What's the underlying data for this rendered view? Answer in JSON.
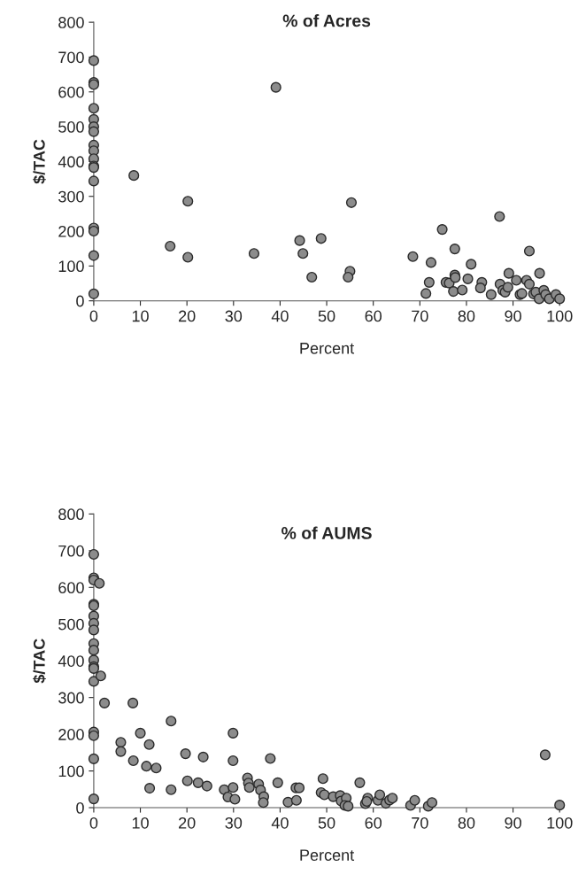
{
  "chart_data": [
    {
      "type": "scatter",
      "title": "% of Acres",
      "xlabel": "Percent",
      "ylabel": "$/TAC",
      "xlim": [
        0,
        100
      ],
      "ylim": [
        0,
        800
      ],
      "xticks": [
        0,
        10,
        20,
        30,
        40,
        50,
        60,
        70,
        80,
        90,
        100
      ],
      "yticks": [
        0,
        100,
        200,
        300,
        400,
        500,
        600,
        700,
        800
      ],
      "grid": false,
      "legend": false,
      "marker": "circle",
      "series": [
        {
          "color": "#8c8c8c",
          "x": [
            0,
            0,
            0,
            0,
            0,
            0,
            0,
            0,
            0,
            0,
            0,
            0,
            0,
            0,
            0,
            0,
            0,
            8.6,
            20.2,
            16.4,
            20.2,
            34.4,
            39.1,
            44.2,
            44.9,
            48.8,
            46.8,
            55.3,
            55.0,
            54.6,
            68.5,
            71.3,
            72.0,
            72.4,
            74.8,
            75.6,
            76.3,
            77.2,
            77.5,
            77.5,
            77.6,
            79.1,
            80.3,
            81.0,
            83.3,
            83.0,
            85.3,
            87.1,
            87.2,
            87.8,
            88.3,
            88.9,
            89.1,
            90.7,
            91.5,
            91.9,
            92.9,
            93.5,
            93.5,
            94.4,
            94.9,
            95.7,
            95.6,
            96.6,
            97.0,
            97.8,
            99.2,
            100
          ],
          "values": [
            690,
            627,
            621,
            553,
            521,
            500,
            486,
            447,
            431,
            408,
            387,
            383,
            344,
            209,
            200,
            130,
            20,
            360,
            286,
            157,
            125,
            136,
            613,
            173,
            136,
            179,
            68,
            282,
            85,
            68,
            127,
            21,
            53,
            110,
            205,
            53,
            51,
            27,
            149,
            74,
            67,
            31,
            63,
            105,
            53,
            37,
            18,
            242,
            48,
            30,
            25,
            39,
            79,
            59,
            18,
            21,
            59,
            143,
            48,
            20,
            25,
            79,
            6,
            30,
            18,
            6,
            18,
            6
          ]
        }
      ]
    },
    {
      "type": "scatter",
      "title": "% of AUMS",
      "xlabel": "Percent",
      "ylabel": "$/TAC",
      "xlim": [
        0,
        100
      ],
      "ylim": [
        0,
        800
      ],
      "xticks": [
        0,
        10,
        20,
        30,
        40,
        50,
        60,
        70,
        80,
        90,
        100
      ],
      "yticks": [
        0,
        100,
        200,
        300,
        400,
        500,
        600,
        700,
        800
      ],
      "grid": false,
      "legend": false,
      "marker": "circle",
      "series": [
        {
          "color": "#8c8c8c",
          "x": [
            0,
            0,
            0,
            0,
            0,
            0,
            0,
            0,
            0,
            0,
            0,
            0,
            0,
            0,
            0,
            0,
            0,
            0,
            1.2,
            1.5,
            2.3,
            8.4,
            5.8,
            5.8,
            8.5,
            10.0,
            11.3,
            11.9,
            12.0,
            13.4,
            16.6,
            16.6,
            19.7,
            20.1,
            22.4,
            23.5,
            24.3,
            28.0,
            28.8,
            29.9,
            29.9,
            29.9,
            30.3,
            33.0,
            33.2,
            33.4,
            35.4,
            35.8,
            36.5,
            36.4,
            37.9,
            39.5,
            41.7,
            43.5,
            43.4,
            44.1,
            49.2,
            48.8,
            49.5,
            51.4,
            52.9,
            53.1,
            54.2,
            53.9,
            54.6,
            57.1,
            58.3,
            58.8,
            58.6,
            61.0,
            61.4,
            62.7,
            63.5,
            64.1,
            68.0,
            68.9,
            71.8,
            72.6,
            96.9,
            100
          ],
          "values": [
            690,
            626,
            620,
            554,
            550,
            522,
            502,
            484,
            447,
            429,
            402,
            384,
            379,
            344,
            206,
            196,
            133,
            24,
            611,
            359,
            285,
            285,
            178,
            153,
            128,
            203,
            113,
            172,
            53,
            108,
            236,
            49,
            147,
            73,
            68,
            138,
            59,
            49,
            29,
            203,
            128,
            55,
            23,
            81,
            67,
            55,
            64,
            48,
            30,
            14,
            134,
            68,
            15,
            20,
            54,
            54,
            79,
            41,
            35,
            30,
            33,
            18,
            26,
            6,
            4,
            68,
            11,
            26,
            17,
            20,
            35,
            12,
            21,
            26,
            6,
            20,
            4,
            14,
            144,
            7
          ]
        }
      ]
    }
  ]
}
